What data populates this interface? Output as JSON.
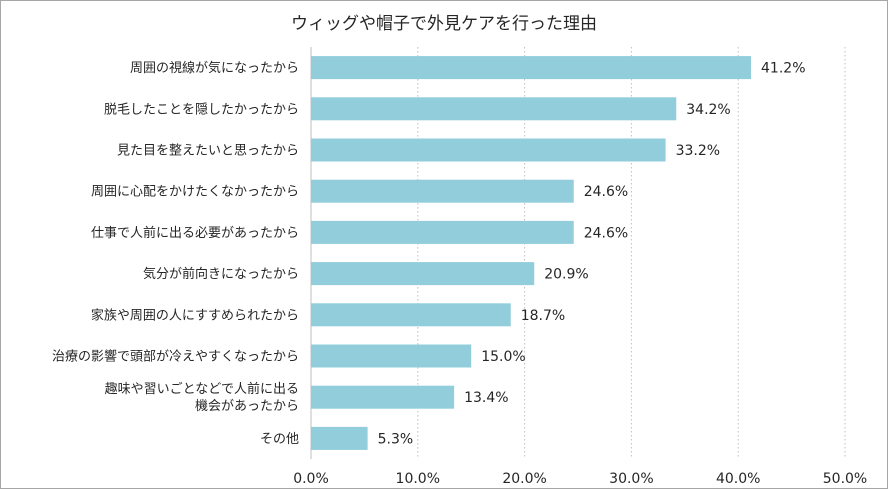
{
  "chart_data": {
    "type": "bar",
    "orientation": "horizontal",
    "title": "ウィッグや帽子で外見ケアを行った理由",
    "xlabel": "",
    "ylabel": "",
    "xlim": [
      0,
      50
    ],
    "grid": true,
    "legend": "none",
    "bar_color": "#92cddc",
    "value_suffix": "%",
    "ticks": [
      {
        "value": 0,
        "label": "0.0%"
      },
      {
        "value": 10,
        "label": "10.0%"
      },
      {
        "value": 20,
        "label": "20.0%"
      },
      {
        "value": 30,
        "label": "30.0%"
      },
      {
        "value": 40,
        "label": "40.0%"
      },
      {
        "value": 50,
        "label": "50.0%"
      }
    ],
    "bars": [
      {
        "lines": [
          "周囲の視線が気になったから"
        ],
        "value": 41.2,
        "label": "41.2%"
      },
      {
        "lines": [
          "脱毛したことを隠したかったから"
        ],
        "value": 34.2,
        "label": "34.2%"
      },
      {
        "lines": [
          "見た目を整えたいと思ったから"
        ],
        "value": 33.2,
        "label": "33.2%"
      },
      {
        "lines": [
          "周囲に心配をかけたくなかったから"
        ],
        "value": 24.6,
        "label": "24.6%"
      },
      {
        "lines": [
          "仕事で人前に出る必要があったから"
        ],
        "value": 24.6,
        "label": "24.6%"
      },
      {
        "lines": [
          "気分が前向きになったから"
        ],
        "value": 20.9,
        "label": "20.9%"
      },
      {
        "lines": [
          "家族や周囲の人にすすめられたから"
        ],
        "value": 18.7,
        "label": "18.7%"
      },
      {
        "lines": [
          "治療の影響で頭部が冷えやすくなったから"
        ],
        "value": 15.0,
        "label": "15.0%"
      },
      {
        "lines": [
          "趣味や習いごとなどで人前に出る",
          "機会があったから"
        ],
        "value": 13.4,
        "label": "13.4%"
      },
      {
        "lines": [
          "その他"
        ],
        "value": 5.3,
        "label": "5.3%"
      }
    ]
  }
}
